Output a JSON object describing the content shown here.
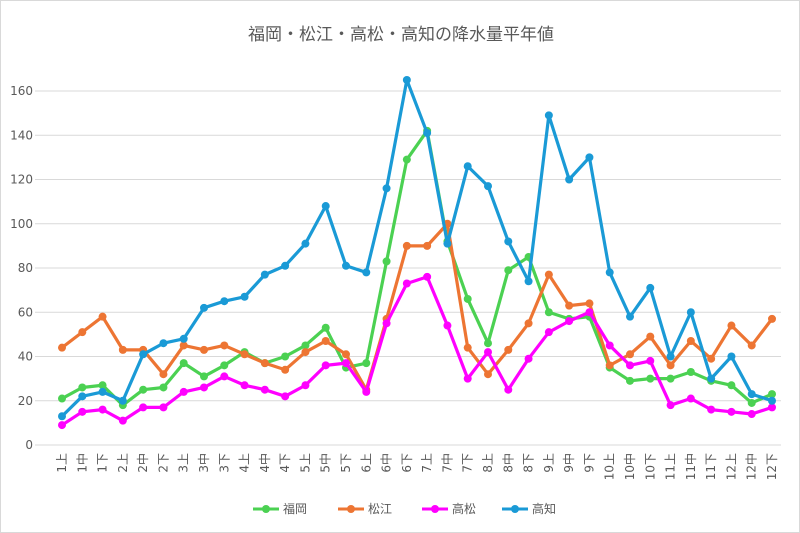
{
  "chart_data": {
    "type": "line",
    "title": "福岡・松江・高松・高知の降水量平年値",
    "xlabel": "",
    "ylabel": "",
    "ylim": [
      0,
      160
    ],
    "yticks": [
      0,
      20,
      40,
      60,
      80,
      100,
      120,
      140,
      160
    ],
    "grid": true,
    "legend_position": "bottom",
    "categories": [
      "1上",
      "1中",
      "1下",
      "2上",
      "2中",
      "2下",
      "3上",
      "3中",
      "3下",
      "4上",
      "4中",
      "4下",
      "5上",
      "5中",
      "5下",
      "6上",
      "6中",
      "6下",
      "7上",
      "7中",
      "7下",
      "8上",
      "8中",
      "8下",
      "9上",
      "9中",
      "9下",
      "10上",
      "10中",
      "10下",
      "11上",
      "11中",
      "11下",
      "12上",
      "12中",
      "12下"
    ],
    "series": [
      {
        "name": "福岡",
        "color": "#4bd152",
        "values": [
          21,
          26,
          27,
          18,
          25,
          26,
          37,
          31,
          36,
          42,
          37,
          40,
          45,
          53,
          35,
          37,
          83,
          129,
          142,
          92,
          66,
          46,
          79,
          85,
          60,
          57,
          58,
          35,
          29,
          30,
          30,
          33,
          29,
          27,
          19,
          23
        ]
      },
      {
        "name": "松江",
        "color": "#ed7533",
        "values": [
          44,
          51,
          58,
          43,
          43,
          32,
          45,
          43,
          45,
          41,
          37,
          34,
          42,
          47,
          41,
          25,
          57,
          90,
          90,
          100,
          44,
          32,
          43,
          55,
          77,
          63,
          64,
          36,
          41,
          49,
          36,
          47,
          39,
          54,
          45,
          57
        ]
      },
      {
        "name": "高松",
        "color": "#ff00ff",
        "values": [
          9,
          15,
          16,
          11,
          17,
          17,
          24,
          26,
          31,
          27,
          25,
          22,
          27,
          36,
          37,
          24,
          55,
          73,
          76,
          54,
          30,
          42,
          25,
          39,
          51,
          56,
          60,
          45,
          36,
          38,
          18,
          21,
          16,
          15,
          14,
          17
        ]
      },
      {
        "name": "高知",
        "color": "#1a9ad6",
        "values": [
          13,
          22,
          24,
          20,
          41,
          46,
          48,
          62,
          65,
          67,
          77,
          81,
          91,
          108,
          81,
          78,
          116,
          165,
          141,
          91,
          126,
          117,
          92,
          74,
          149,
          120,
          130,
          78,
          58,
          71,
          40,
          60,
          30,
          40,
          23,
          20
        ]
      }
    ]
  }
}
